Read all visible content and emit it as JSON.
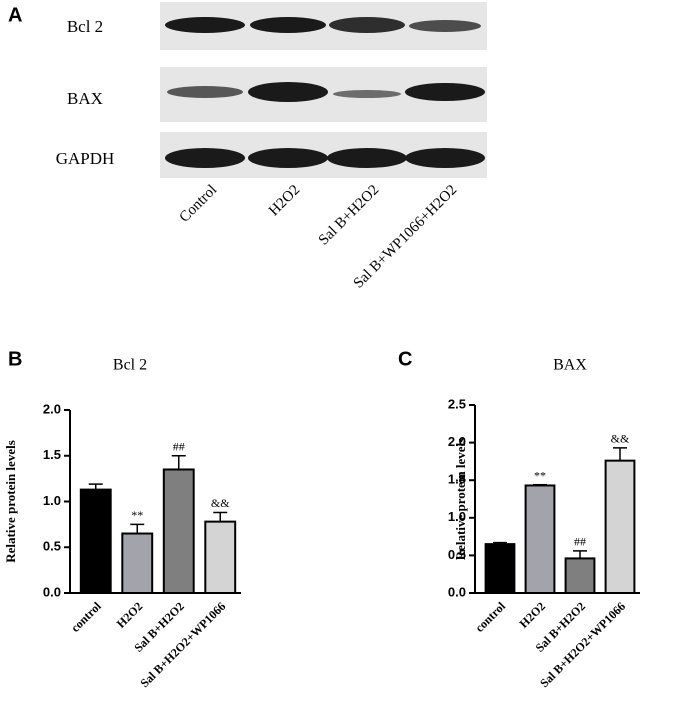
{
  "blot": {
    "label": "A",
    "rows": [
      "Bcl 2",
      "BAX",
      "GAPDH"
    ],
    "lanes": [
      "Control",
      "H2O2",
      "Sal B+H2O2",
      "Sal B+WP1066+H2O2"
    ]
  },
  "chart_data": [
    {
      "type": "bar",
      "label": "B",
      "title": "Bcl 2",
      "y_label": "Relative protein levels",
      "categories": [
        "control",
        "H2O2",
        "Sal B+H2O2",
        "Sal B+H2O2+WP1066"
      ],
      "values": [
        1.13,
        0.65,
        1.35,
        0.78
      ],
      "errors": [
        0.06,
        0.1,
        0.15,
        0.1
      ],
      "annotations": [
        null,
        "**",
        "##",
        "&&"
      ],
      "colors": [
        "#000000",
        "#a3a3ab",
        "#7f7f7f",
        "#d4d4d4"
      ],
      "ylim": [
        0,
        2
      ],
      "yticks": [
        {
          "value": 0,
          "label": "0.0"
        },
        0.5,
        {
          "value": 1,
          "label": "1.0"
        },
        1.5,
        {
          "value": 2,
          "label": "2.0"
        }
      ]
    },
    {
      "type": "bar",
      "label": "C",
      "title": "BAX",
      "y_label": "Relative protein levels",
      "categories": [
        "control",
        "H2O2",
        "Sal B+H2O2",
        "Sal B+H2O2+WP1066"
      ],
      "values": [
        0.65,
        1.43,
        0.46,
        1.76
      ],
      "errors": [
        0.02,
        0.01,
        0.1,
        0.17
      ],
      "annotations": [
        null,
        "**",
        "##",
        "&&"
      ],
      "colors": [
        "#000000",
        "#a3a3ab",
        "#7f7f7f",
        "#d4d4d4"
      ],
      "ylim": [
        0,
        2.5
      ],
      "yticks": [
        {
          "value": 0,
          "label": "0.0"
        },
        0.5,
        {
          "value": 1,
          "label": "1.0"
        },
        1.5,
        {
          "value": 2,
          "label": "2.0"
        },
        2.5
      ]
    }
  ]
}
